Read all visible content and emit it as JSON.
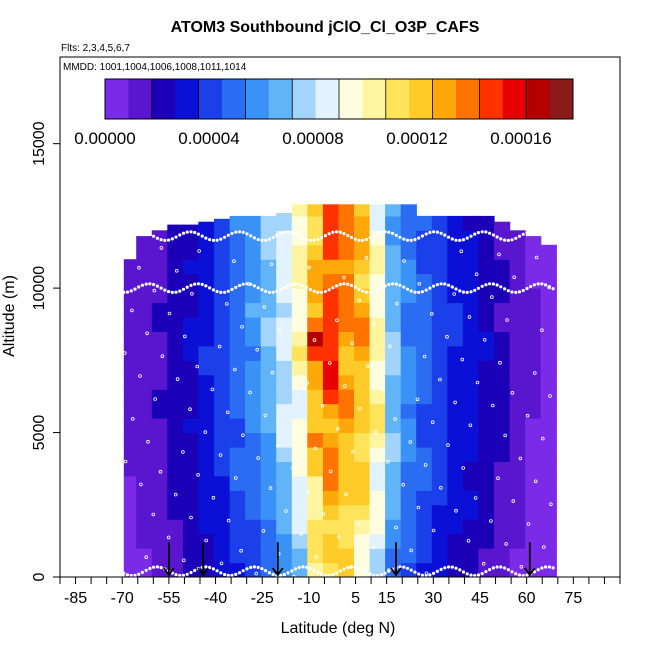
{
  "chart_data": {
    "type": "heatmap",
    "title": "ATOM3 Southbound jClO_Cl_O3P_CAFS",
    "flights_label": "Flts: 2,3,4,5,6,7",
    "dates_label": "MMDD: 1001,1004,1006,1008,1011,1014",
    "xlabel": "Latitude (deg N)",
    "ylabel": "Altitude (m)",
    "xlim": [
      -90,
      90
    ],
    "ylim": [
      0,
      18000
    ],
    "x_ticks": [
      -85,
      -70,
      -55,
      -40,
      -25,
      -10,
      5,
      15,
      30,
      45,
      60,
      75
    ],
    "x_tick_labels": [
      "-85",
      "-70",
      "-55",
      "-40",
      "-25",
      "-10",
      "5",
      "15",
      "30",
      "45",
      "60",
      "75"
    ],
    "y_ticks": [
      0,
      5000,
      10000,
      15000
    ],
    "y_tick_labels": [
      "0",
      "5000",
      "10000",
      "15000"
    ],
    "colorbar": {
      "range": [
        0,
        0.00018
      ],
      "tick_values": [
        0,
        4e-05,
        8e-05,
        0.00012,
        0.00016
      ],
      "tick_labels": [
        "0.00000",
        "0.00004",
        "0.00008",
        "0.00012",
        "0.00016"
      ],
      "colors": [
        "#7b2ae8",
        "#5a16cf",
        "#1c00b8",
        "#0a10d6",
        "#1b3fe8",
        "#2a6df2",
        "#3a92f6",
        "#62b4f8",
        "#a3d4fb",
        "#e2f2fe",
        "#fffde0",
        "#fff5a0",
        "#ffe35a",
        "#ffcb28",
        "#ffa80a",
        "#ff7300",
        "#ff3200",
        "#e60000",
        "#b30000",
        "#8b1a1a"
      ]
    },
    "profiles": [
      {
        "lat": -67,
        "top": 11000,
        "values": [
          6e-06,
          1e-05,
          1.2e-05,
          1e-05
        ]
      },
      {
        "lat": -63,
        "top": 11800,
        "values": [
          8e-06,
          1.2e-05,
          1.4e-05,
          1.2e-05
        ]
      },
      {
        "lat": -58,
        "top": 12000,
        "values": [
          1.2e-05,
          1.6e-05,
          1.8e-05,
          1.6e-05
        ]
      },
      {
        "lat": -53,
        "top": 12200,
        "values": [
          1.4e-05,
          2e-05,
          2.2e-05,
          2e-05
        ]
      },
      {
        "lat": -48,
        "top": 12200,
        "values": [
          1.8e-05,
          2.4e-05,
          2.8e-05,
          2.4e-05
        ]
      },
      {
        "lat": -43,
        "top": 12300,
        "values": [
          2.2e-05,
          3e-05,
          3.4e-05,
          3.2e-05
        ]
      },
      {
        "lat": -38,
        "top": 12400,
        "values": [
          2.8e-05,
          3.8e-05,
          4.2e-05,
          4e-05
        ]
      },
      {
        "lat": -33,
        "top": 12500,
        "values": [
          3.4e-05,
          4.6e-05,
          5.2e-05,
          5e-05
        ]
      },
      {
        "lat": -28,
        "top": 12500,
        "values": [
          4e-05,
          5.4e-05,
          6e-05,
          6e-05
        ]
      },
      {
        "lat": -23,
        "top": 12500,
        "values": [
          4.6e-05,
          6.2e-05,
          7e-05,
          7e-05
        ]
      },
      {
        "lat": -18,
        "top": 12600,
        "values": [
          5.6e-05,
          7.4e-05,
          8.4e-05,
          8.2e-05
        ]
      },
      {
        "lat": -13,
        "top": 12900,
        "values": [
          7.2e-05,
          9.2e-05,
          0.0001,
          0.0001
        ]
      },
      {
        "lat": -8,
        "top": 12900,
        "values": [
          0.0001,
          0.000118,
          0.000126,
          0.00012
        ]
      },
      {
        "lat": -3,
        "top": 12900,
        "values": [
          0.000112,
          0.000132,
          0.00015,
          0.000138
        ]
      },
      {
        "lat": 2,
        "top": 12900,
        "values": [
          0.000108,
          0.000126,
          0.000134,
          0.000138
        ]
      },
      {
        "lat": 7,
        "top": 12900,
        "values": [
          9.6e-05,
          0.00012,
          0.000126,
          0.000124
        ]
      },
      {
        "lat": 12,
        "top": 12900,
        "values": [
          7.8e-05,
          0.0001,
          0.000104,
          9.2e-05
        ]
      },
      {
        "lat": 17,
        "top": 12900,
        "values": [
          5.2e-05,
          7e-05,
          7.2e-05,
          6.4e-05
        ]
      },
      {
        "lat": 22,
        "top": 12900,
        "values": [
          4e-05,
          5.4e-05,
          5.6e-05,
          5e-05
        ]
      },
      {
        "lat": 27,
        "top": 12500,
        "values": [
          3.4e-05,
          4.6e-05,
          4.8e-05,
          4.4e-05
        ]
      },
      {
        "lat": 32,
        "top": 12500,
        "values": [
          3e-05,
          4e-05,
          4.2e-05,
          3.8e-05
        ]
      },
      {
        "lat": 37,
        "top": 12500,
        "values": [
          2.6e-05,
          3.4e-05,
          3.6e-05,
          3.2e-05
        ]
      },
      {
        "lat": 42,
        "top": 12500,
        "values": [
          2.2e-05,
          3e-05,
          3.2e-05,
          2.8e-05
        ]
      },
      {
        "lat": 47,
        "top": 12500,
        "values": [
          1.8e-05,
          2.4e-05,
          2.6e-05,
          2.2e-05
        ]
      },
      {
        "lat": 52,
        "top": 12300,
        "values": [
          1.2e-05,
          1.8e-05,
          2e-05,
          1.6e-05
        ]
      },
      {
        "lat": 57,
        "top": 12000,
        "values": [
          8e-06,
          1.2e-05,
          1.4e-05,
          1.2e-05
        ]
      },
      {
        "lat": 62,
        "top": 11800,
        "values": [
          6e-06,
          8e-06,
          1e-05,
          8e-06
        ]
      },
      {
        "lat": 67,
        "top": 11500,
        "values": [
          4e-06,
          6e-06,
          8e-06,
          6e-06
        ]
      }
    ],
    "profile_altitudes": [
      0,
      4000,
      8000,
      12000
    ],
    "hotspots": [
      {
        "lat": -7,
        "alt": 8200,
        "value": 0.000175
      },
      {
        "lat": -3,
        "alt": 11500,
        "value": 0.000165
      },
      {
        "lat": -6,
        "alt": 4700,
        "value": 0.000158
      },
      {
        "lat": 1,
        "alt": 9500,
        "value": 0.00015
      }
    ],
    "arrows": [
      -55,
      -44,
      -20,
      18,
      61
    ],
    "flight_track_altitudes": [
      200,
      10000,
      11800
    ]
  }
}
